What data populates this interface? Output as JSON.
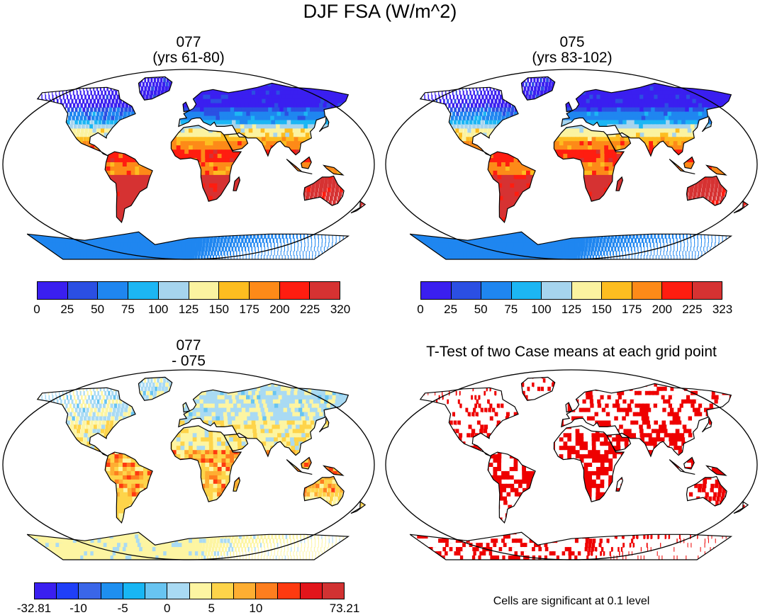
{
  "figure": {
    "title": "DJF FSA (W/m^2)",
    "panels": [
      {
        "id": "p1",
        "title": "077\n(yrs 61-80)",
        "kind": "field"
      },
      {
        "id": "p2",
        "title": "075\n(yrs 83-102)",
        "kind": "field"
      },
      {
        "id": "p3",
        "title": "077\n- 075",
        "kind": "diff"
      },
      {
        "id": "p4",
        "title": "T-Test of two Case means at each grid point",
        "kind": "ttest"
      }
    ],
    "note": "Cells are significant at 0.1 level"
  },
  "colorbars": {
    "top_left": {
      "colors": [
        "#3a1ff0",
        "#2b4fe3",
        "#1f86f0",
        "#1cb6f4",
        "#a6d4ee",
        "#fbf3a0",
        "#fdbd20",
        "#fd8a18",
        "#ff1d10",
        "#d63232"
      ],
      "labels": [
        "0",
        "25",
        "50",
        "75",
        "100",
        "125",
        "150",
        "175",
        "200",
        "225",
        "320"
      ]
    },
    "top_right": {
      "colors": [
        "#3a1ff0",
        "#2b4fe3",
        "#1f86f0",
        "#1cb6f4",
        "#a6d4ee",
        "#fbf3a0",
        "#fdbd20",
        "#fd8a18",
        "#ff1d10",
        "#d63232"
      ],
      "labels": [
        "0",
        "25",
        "50",
        "75",
        "100",
        "125",
        "150",
        "175",
        "200",
        "225",
        "323"
      ]
    },
    "bottom_left": {
      "colors": [
        "#3a1ff0",
        "#1f3ff8",
        "#3a66e8",
        "#1e8ff0",
        "#18b6f4",
        "#68c4f1",
        "#a9daf3",
        "#fdf5a2",
        "#fed44a",
        "#feae32",
        "#fe7e1e",
        "#fe3a10",
        "#e2151b",
        "#d13232"
      ],
      "labels": [
        "-32.81",
        "",
        "-10",
        "",
        "-5",
        "",
        "0",
        "",
        "5",
        "",
        "10",
        "",
        "",
        "",
        "73.21"
      ]
    }
  },
  "chart_data": {
    "type": "heatmap",
    "title": "DJF FSA (W/m^2)",
    "variable": "FSA",
    "season": "DJF",
    "units": "W/m^2",
    "projection": "Robinson (global land)",
    "panels": [
      {
        "name": "077 (yrs 61-80)",
        "levels": [
          0,
          25,
          50,
          75,
          100,
          125,
          150,
          175,
          200,
          225,
          320
        ]
      },
      {
        "name": "075 (yrs 83-102)",
        "levels": [
          0,
          25,
          50,
          75,
          100,
          125,
          150,
          175,
          200,
          225,
          323
        ]
      },
      {
        "name": "077 - 075",
        "levels": [
          -32.81,
          -10,
          -5,
          0,
          5,
          10,
          73.21
        ]
      },
      {
        "name": "T-Test of two Case means at each grid point",
        "significance": 0.1
      }
    ]
  }
}
